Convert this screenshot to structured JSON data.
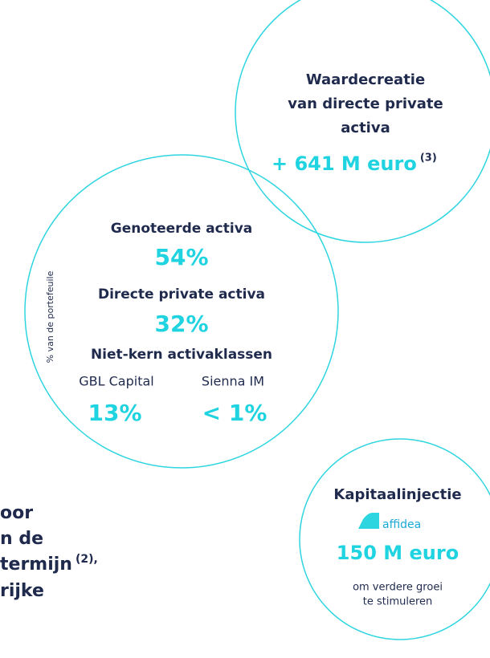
{
  "value_creation": {
    "title_lines": [
      "Waardecreatie",
      "van directe private",
      "activa"
    ],
    "amount": "+ 641 M euro",
    "footnote": "(3)"
  },
  "portfolio": {
    "axis_note": "% van de portefeuile",
    "items": [
      {
        "label": "Genoteerde activa",
        "value": "54%"
      },
      {
        "label": "Directe private activa",
        "value": "32%"
      }
    ],
    "non_core": {
      "label": "Niet-kern activaklassen",
      "parts": [
        {
          "label": "GBL Capital",
          "value": "13%"
        },
        {
          "label": "Sienna IM",
          "value": "< 1%"
        }
      ]
    }
  },
  "capital_injection": {
    "title": "Kapitaalinjectie",
    "logo": "affidea",
    "amount": "150 M euro",
    "note_lines": [
      "om verdere groei",
      "te stimuleren"
    ]
  },
  "side_text": {
    "lines": [
      "oor",
      "n de",
      "termijn",
      "rijke"
    ],
    "footnote": "(2),"
  }
}
